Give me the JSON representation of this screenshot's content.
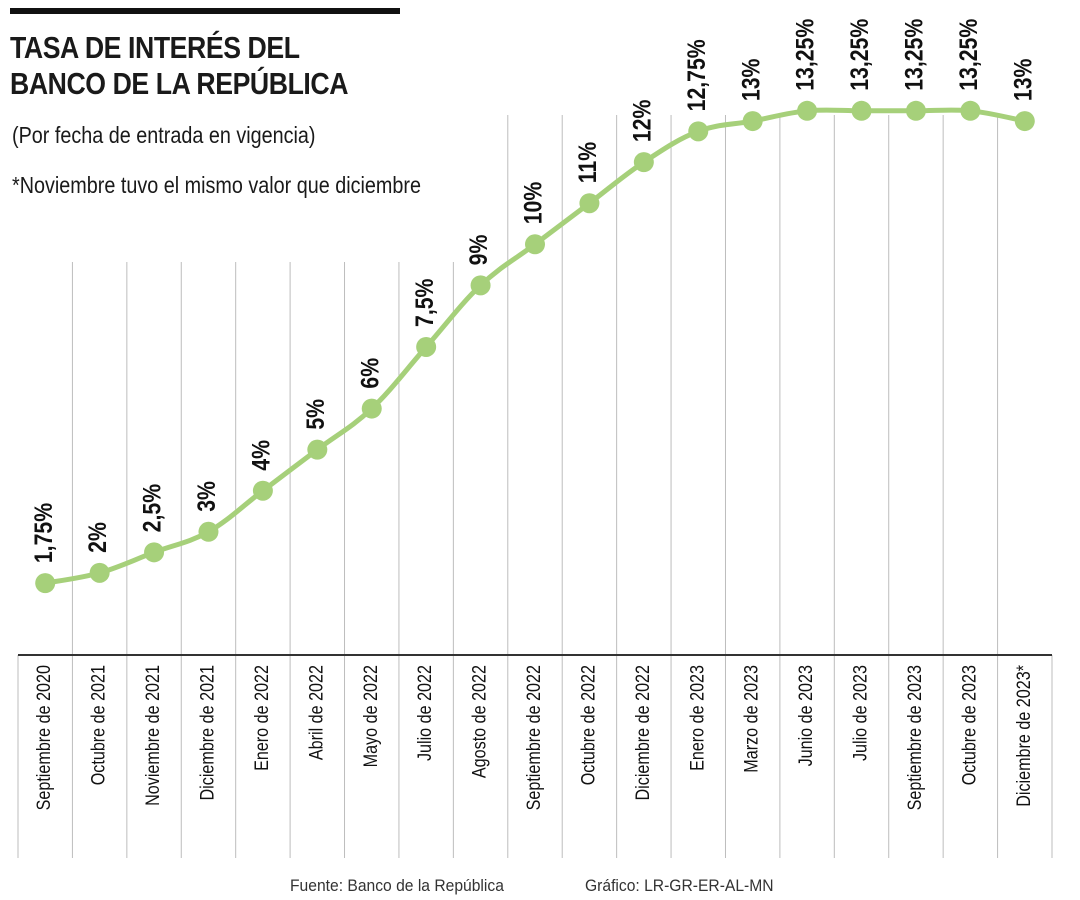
{
  "header": {
    "title_line1": "TASA DE INTERÉS DEL",
    "title_line2": "BANCO DE LA REPÚBLICA",
    "subtitle": "(Por fecha de entrada en vigencia)",
    "note": "*Noviembre tuvo el mismo valor que diciembre"
  },
  "footer": {
    "source": "Fuente: Banco de la República",
    "credit": "Gráfico: LR-GR-ER-AL-MN"
  },
  "colors": {
    "line": "#a6d07a",
    "grid": "#bdbdbd",
    "axis": "#333333",
    "text": "#111111"
  },
  "chart_data": {
    "type": "line",
    "title": "TASA DE INTERÉS DEL BANCO DE LA REPÚBLICA",
    "subtitle": "(Por fecha de entrada en vigencia)",
    "xlabel": "",
    "ylabel": "",
    "grid": "vertical",
    "categories": [
      "Septiembre de 2020",
      "Octubre de 2021",
      "Noviembre de 2021",
      "Diciembre de 2021",
      "Enero de 2022",
      "Abril de 2022",
      "Mayo de 2022",
      "Julio de 2022",
      "Agosto de 2022",
      "Septiembre de 2022",
      "Octubre de 2022",
      "Diciembre de 2022",
      "Enero de 2023",
      "Marzo de 2023",
      "Junio de 2023",
      "Julio de 2023",
      "Septiembre de 2023",
      "Octubre de 2023",
      "Diciembre de 2023*"
    ],
    "values": [
      1.75,
      2,
      2.5,
      3,
      4,
      5,
      6,
      7.5,
      9,
      10,
      11,
      12,
      12.75,
      13,
      13.25,
      13.25,
      13.25,
      13.25,
      13
    ],
    "value_labels": [
      "1,75%",
      "2%",
      "2,5%",
      "3%",
      "4%",
      "5%",
      "6%",
      "7,5%",
      "9%",
      "10%",
      "11%",
      "12%",
      "12,75%",
      "13%",
      "13,25%",
      "13,25%",
      "13,25%",
      "13,25%",
      "13%"
    ],
    "ylim": [
      0,
      14
    ]
  }
}
